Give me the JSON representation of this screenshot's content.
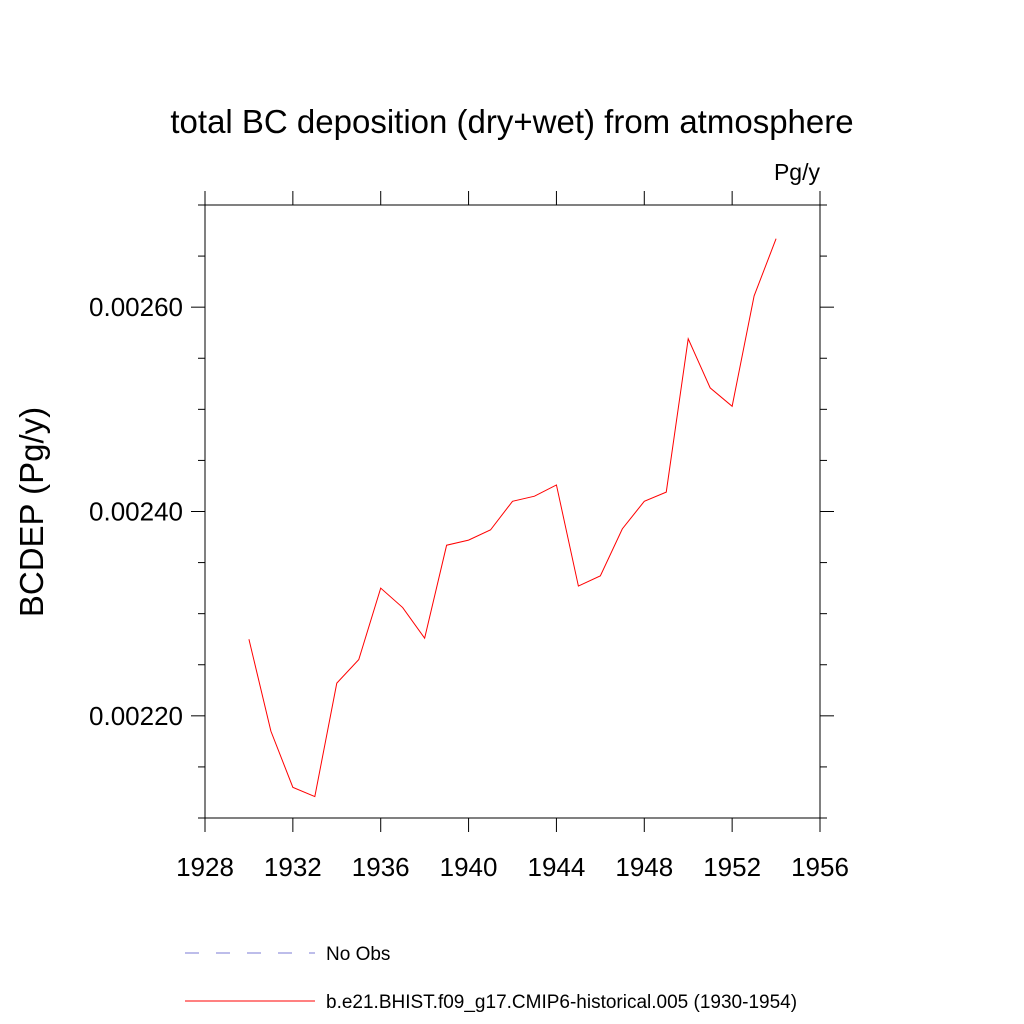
{
  "chart_data": {
    "type": "line",
    "title": "total BC deposition (dry+wet) from atmosphere",
    "units_label": "Pg/y",
    "ylabel": "BCDEP  (Pg/y)",
    "xlabel": "",
    "xlim": [
      1928,
      1956
    ],
    "ylim": [
      0.0021,
      0.0027
    ],
    "x_ticks": [
      1928,
      1932,
      1936,
      1940,
      1944,
      1948,
      1952,
      1956
    ],
    "x_tick_labels": [
      "1928",
      "1932",
      "1936",
      "1940",
      "1944",
      "1948",
      "1952",
      "1956"
    ],
    "y_ticks": [
      0.0022,
      0.0024,
      0.0026
    ],
    "y_tick_labels": [
      "0.00220",
      "0.00240",
      "0.00260"
    ],
    "grid": false,
    "legend_position": "bottom",
    "series": [
      {
        "name": "No Obs",
        "color": "#7b7bd6",
        "style": "dashed",
        "x": [],
        "values": []
      },
      {
        "name": "b.e21.BHIST.f09_g17.CMIP6-historical.005 (1930-1954)",
        "color": "#ff0000",
        "style": "solid",
        "x": [
          1930,
          1931,
          1932,
          1933,
          1934,
          1935,
          1936,
          1937,
          1938,
          1939,
          1940,
          1941,
          1942,
          1943,
          1944,
          1945,
          1946,
          1947,
          1948,
          1949,
          1950,
          1951,
          1952,
          1953,
          1954
        ],
        "values": [
          0.002275,
          0.002185,
          0.00213,
          0.002121,
          0.002232,
          0.002255,
          0.002325,
          0.002306,
          0.002276,
          0.002367,
          0.002372,
          0.002382,
          0.00241,
          0.002415,
          0.002426,
          0.002327,
          0.002337,
          0.002383,
          0.00241,
          0.002419,
          0.002569,
          0.002521,
          0.002503,
          0.002611,
          0.002667
        ]
      }
    ]
  }
}
